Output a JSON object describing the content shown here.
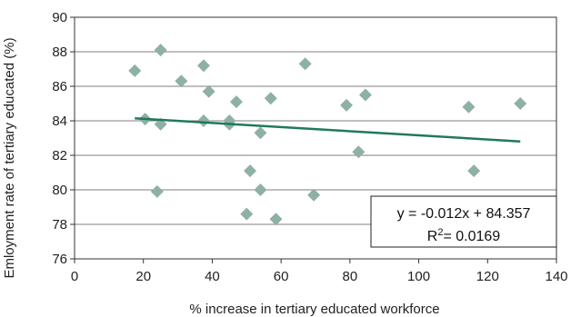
{
  "chart_data": {
    "type": "scatter",
    "xlabel": "% increase in tertiary educated workforce",
    "ylabel": "Emloyment rate of tertiary educated (%)",
    "xlim": [
      0,
      140
    ],
    "ylim": [
      76,
      90
    ],
    "x_ticks": [
      "0",
      "20",
      "40",
      "60",
      "80",
      "100",
      "120",
      "140"
    ],
    "y_ticks": [
      "76",
      "78",
      "80",
      "82",
      "84",
      "86",
      "88",
      "90"
    ],
    "grid": "horizontal",
    "marker_color": "#8fb0a4",
    "trendline_color": "#1f7a5a",
    "points": [
      {
        "x": 17.5,
        "y": 86.9
      },
      {
        "x": 20.5,
        "y": 84.1
      },
      {
        "x": 24.0,
        "y": 79.9
      },
      {
        "x": 25.0,
        "y": 88.1
      },
      {
        "x": 25.0,
        "y": 83.8
      },
      {
        "x": 31.0,
        "y": 86.3
      },
      {
        "x": 37.5,
        "y": 87.2
      },
      {
        "x": 37.5,
        "y": 84.0
      },
      {
        "x": 39.0,
        "y": 85.7
      },
      {
        "x": 45.0,
        "y": 84.0
      },
      {
        "x": 45.0,
        "y": 83.8
      },
      {
        "x": 47.0,
        "y": 85.1
      },
      {
        "x": 50.0,
        "y": 78.6
      },
      {
        "x": 51.0,
        "y": 81.1
      },
      {
        "x": 54.0,
        "y": 80.0
      },
      {
        "x": 54.0,
        "y": 83.3
      },
      {
        "x": 57.0,
        "y": 85.3
      },
      {
        "x": 58.5,
        "y": 78.3
      },
      {
        "x": 67.0,
        "y": 87.3
      },
      {
        "x": 69.5,
        "y": 79.7
      },
      {
        "x": 79.0,
        "y": 84.9
      },
      {
        "x": 82.5,
        "y": 82.2
      },
      {
        "x": 84.5,
        "y": 85.5
      },
      {
        "x": 114.5,
        "y": 84.8
      },
      {
        "x": 116.0,
        "y": 81.1
      },
      {
        "x": 129.5,
        "y": 85.0
      }
    ],
    "trendline": {
      "slope": -0.012,
      "intercept": 84.357,
      "x_range": [
        17.5,
        129.5
      ]
    },
    "annotation": {
      "equation": "y = -0.012x + 84.357",
      "r2_prefix": "R",
      "r2_sup": "2",
      "r2_value": "= 0.0169"
    }
  }
}
